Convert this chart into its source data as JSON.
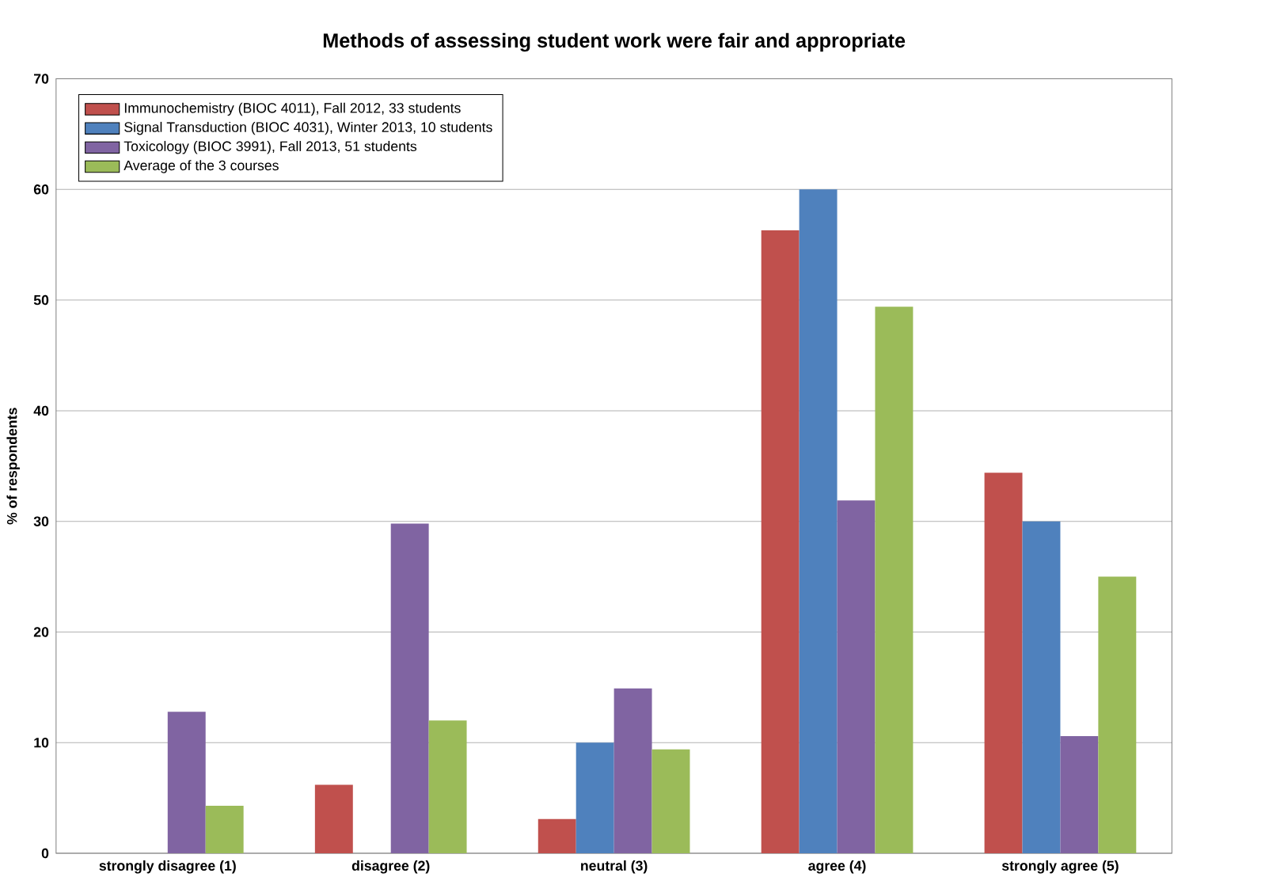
{
  "chart_data": {
    "type": "bar",
    "title": "Methods of assessing student work were fair and appropriate",
    "ylabel": "% of respondents",
    "categories": [
      "strongly disagree (1)",
      "disagree (2)",
      "neutral (3)",
      "agree (4)",
      "strongly agree (5)"
    ],
    "series": [
      {
        "name": "Immunochemistry (BIOC 4011), Fall 2012, 33 students",
        "color": "#c0504d",
        "values": [
          0,
          6.2,
          3.1,
          56.3,
          34.4
        ]
      },
      {
        "name": "Signal Transduction (BIOC 4031), Winter 2013, 10 students",
        "color": "#4f81bd",
        "values": [
          0,
          0,
          10,
          60,
          30
        ]
      },
      {
        "name": "Toxicology (BIOC 3991), Fall 2013, 51 students",
        "color": "#8064a2",
        "values": [
          12.8,
          29.8,
          14.9,
          31.9,
          10.6
        ]
      },
      {
        "name": "Average of the 3 courses",
        "color": "#9bbb59",
        "values": [
          4.3,
          12,
          9.4,
          49.4,
          25
        ]
      }
    ],
    "ylim": [
      0,
      70
    ],
    "yticks": [
      0,
      10,
      20,
      30,
      40,
      50,
      60,
      70
    ],
    "grid": "y",
    "legend": "top left"
  }
}
